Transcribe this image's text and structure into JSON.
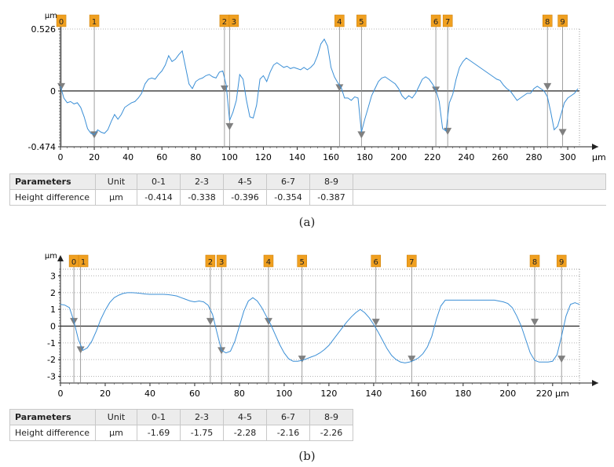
{
  "chart_data": [
    {
      "type": "line",
      "ylabel": "μm",
      "xlabel": "μm",
      "x_ticks": [
        0,
        20,
        40,
        60,
        80,
        100,
        120,
        140,
        160,
        180,
        200,
        220,
        240,
        260,
        280,
        300
      ],
      "y_ticks": [
        "0.526",
        "0",
        "-0.474"
      ],
      "y_tick_values": [
        0.526,
        0,
        -0.474
      ],
      "xlim": [
        0,
        306
      ],
      "ylim": [
        -0.474,
        0.526
      ],
      "markers": [
        {
          "label": "0",
          "x": 0.5,
          "y": 0.04
        },
        {
          "label": "1",
          "x": 20,
          "y": -0.37
        },
        {
          "label": "2",
          "x": 97,
          "y": 0.02
        },
        {
          "label": "3",
          "x": 100,
          "y": -0.3
        },
        {
          "label": "4",
          "x": 165,
          "y": 0.03
        },
        {
          "label": "5",
          "x": 178,
          "y": -0.37
        },
        {
          "label": "6",
          "x": 222,
          "y": 0.01
        },
        {
          "label": "7",
          "x": 229,
          "y": -0.34
        },
        {
          "label": "8",
          "x": 288,
          "y": 0.04
        },
        {
          "label": "9",
          "x": 297,
          "y": -0.35
        }
      ],
      "series": [
        {
          "x": [
            0,
            2,
            4,
            6,
            8,
            10,
            12,
            14,
            16,
            18,
            20,
            22,
            24,
            26,
            28,
            30,
            32,
            34,
            36,
            38,
            40,
            42,
            44,
            46,
            48,
            50,
            52,
            54,
            56,
            58,
            60,
            62,
            64,
            66,
            68,
            70,
            72,
            74,
            76,
            78,
            80,
            82,
            84,
            86,
            88,
            90,
            92,
            94,
            96,
            98,
            100,
            102,
            104,
            106,
            108,
            110,
            112,
            114,
            116,
            118,
            120,
            122,
            124,
            126,
            128,
            130,
            132,
            134,
            136,
            138,
            140,
            142,
            144,
            146,
            148,
            150,
            152,
            154,
            156,
            158,
            160,
            162,
            164,
            166,
            168,
            170,
            172,
            174,
            176,
            178,
            180,
            182,
            184,
            186,
            188,
            190,
            192,
            194,
            196,
            198,
            200,
            202,
            204,
            206,
            208,
            210,
            212,
            214,
            216,
            218,
            220,
            222,
            224,
            226,
            228,
            230,
            232,
            234,
            236,
            238,
            240,
            242,
            244,
            246,
            248,
            250,
            252,
            254,
            256,
            258,
            260,
            262,
            264,
            266,
            268,
            270,
            272,
            274,
            276,
            278,
            280,
            282,
            284,
            286,
            288,
            290,
            292,
            294,
            296,
            298,
            300,
            302,
            304,
            306
          ],
          "y": [
            0.04,
            -0.06,
            -0.1,
            -0.09,
            -0.11,
            -0.1,
            -0.14,
            -0.22,
            -0.32,
            -0.36,
            -0.37,
            -0.33,
            -0.35,
            -0.36,
            -0.33,
            -0.26,
            -0.2,
            -0.24,
            -0.2,
            -0.14,
            -0.12,
            -0.1,
            -0.09,
            -0.06,
            -0.02,
            0.06,
            0.1,
            0.11,
            0.1,
            0.14,
            0.17,
            0.22,
            0.3,
            0.25,
            0.27,
            0.31,
            0.34,
            0.2,
            0.06,
            0.02,
            0.08,
            0.1,
            0.11,
            0.13,
            0.14,
            0.12,
            0.11,
            0.16,
            0.17,
            0.05,
            -0.25,
            -0.18,
            -0.08,
            0.14,
            0.1,
            -0.08,
            -0.22,
            -0.23,
            -0.12,
            0.1,
            0.13,
            0.08,
            0.16,
            0.22,
            0.24,
            0.22,
            0.2,
            0.21,
            0.19,
            0.2,
            0.19,
            0.18,
            0.2,
            0.18,
            0.2,
            0.23,
            0.3,
            0.4,
            0.44,
            0.38,
            0.2,
            0.12,
            0.07,
            0.03,
            -0.06,
            -0.06,
            -0.08,
            -0.05,
            -0.06,
            -0.35,
            -0.24,
            -0.14,
            -0.04,
            0.02,
            0.08,
            0.11,
            0.12,
            0.1,
            0.08,
            0.06,
            0.02,
            -0.04,
            -0.07,
            -0.04,
            -0.06,
            -0.02,
            0.04,
            0.1,
            0.12,
            0.1,
            0.06,
            0.01,
            -0.09,
            -0.32,
            -0.34,
            -0.1,
            -0.03,
            0.1,
            0.2,
            0.25,
            0.28,
            0.26,
            0.24,
            0.22,
            0.2,
            0.18,
            0.16,
            0.14,
            0.12,
            0.1,
            0.09,
            0.05,
            0.02,
            0,
            -0.04,
            -0.08,
            -0.06,
            -0.04,
            -0.02,
            -0.02,
            0.02,
            0.04,
            0.02,
            0,
            -0.05,
            -0.18,
            -0.33,
            -0.3,
            -0.2,
            -0.1,
            -0.06,
            -0.04,
            -0.02,
            0.02
          ]
        }
      ],
      "table": {
        "header": [
          "Parameters",
          "Unit",
          "0-1",
          "2-3",
          "4-5",
          "6-7",
          "8-9"
        ],
        "row": [
          "Height difference",
          "μm",
          "-0.414",
          "-0.338",
          "-0.396",
          "-0.354",
          "-0.387"
        ]
      },
      "caption": "(a)"
    },
    {
      "type": "line",
      "ylabel": "μm",
      "xlabel": "μm",
      "x_ticks": [
        0,
        20,
        40,
        60,
        80,
        100,
        120,
        140,
        160,
        180,
        200,
        220
      ],
      "x_tick_labels": [
        "0",
        "20",
        "40",
        "60",
        "80",
        "100",
        "120",
        "140",
        "160",
        "180",
        "200",
        "220 μm"
      ],
      "y_ticks": [
        "3",
        "2",
        "1",
        "0",
        "-1",
        "-2",
        "-3"
      ],
      "y_tick_values": [
        3,
        2,
        1,
        0,
        -1,
        -2,
        -3
      ],
      "xlim": [
        0,
        232
      ],
      "ylim": [
        -3.4,
        3.4
      ],
      "markers": [
        {
          "label": "0",
          "x": 6,
          "y": 0.3
        },
        {
          "label": "1",
          "x": 9,
          "y": -1.4
        },
        {
          "label": "2",
          "x": 67,
          "y": 0.3
        },
        {
          "label": "3",
          "x": 72,
          "y": -1.45
        },
        {
          "label": "4",
          "x": 93,
          "y": 0.3
        },
        {
          "label": "5",
          "x": 108,
          "y": -1.95
        },
        {
          "label": "6",
          "x": 141,
          "y": 0.25
        },
        {
          "label": "7",
          "x": 157,
          "y": -1.95
        },
        {
          "label": "8",
          "x": 212,
          "y": 0.25
        },
        {
          "label": "9",
          "x": 224,
          "y": -1.95
        }
      ],
      "series": [
        {
          "x": [
            0,
            2,
            4,
            6,
            8,
            10,
            12,
            14,
            16,
            18,
            20,
            22,
            24,
            26,
            28,
            30,
            32,
            34,
            36,
            38,
            40,
            42,
            44,
            46,
            48,
            50,
            52,
            54,
            56,
            58,
            60,
            62,
            64,
            66,
            68,
            70,
            72,
            74,
            76,
            78,
            80,
            82,
            84,
            86,
            88,
            90,
            92,
            94,
            96,
            98,
            100,
            102,
            104,
            106,
            108,
            110,
            112,
            114,
            116,
            118,
            120,
            122,
            124,
            126,
            128,
            130,
            132,
            134,
            136,
            138,
            140,
            142,
            144,
            146,
            148,
            150,
            152,
            154,
            156,
            158,
            160,
            162,
            164,
            166,
            168,
            170,
            172,
            174,
            176,
            178,
            180,
            182,
            184,
            186,
            188,
            190,
            192,
            194,
            196,
            198,
            200,
            202,
            204,
            206,
            208,
            210,
            212,
            214,
            216,
            218,
            220,
            222,
            224,
            226,
            228,
            230,
            232
          ],
          "y": [
            1.3,
            1.25,
            1.1,
            0.3,
            -0.8,
            -1.45,
            -1.3,
            -0.9,
            -0.3,
            0.4,
            0.95,
            1.4,
            1.7,
            1.85,
            1.95,
            2,
            2,
            1.98,
            1.95,
            1.92,
            1.9,
            1.9,
            1.9,
            1.9,
            1.88,
            1.85,
            1.8,
            1.7,
            1.6,
            1.5,
            1.45,
            1.5,
            1.45,
            1.25,
            0.7,
            -0.4,
            -1.45,
            -1.6,
            -1.5,
            -0.9,
            0,
            0.9,
            1.5,
            1.7,
            1.5,
            1.1,
            0.6,
            0.1,
            -0.5,
            -1.1,
            -1.6,
            -1.95,
            -2.1,
            -2.1,
            -2.05,
            -1.95,
            -1.85,
            -1.75,
            -1.6,
            -1.4,
            -1.15,
            -0.8,
            -0.45,
            -0.1,
            0.25,
            0.55,
            0.8,
            1,
            0.8,
            0.5,
            0.1,
            -0.35,
            -0.85,
            -1.35,
            -1.75,
            -2,
            -2.15,
            -2.2,
            -2.15,
            -2.05,
            -1.9,
            -1.65,
            -1.25,
            -0.6,
            0.4,
            1.2,
            1.55,
            1.55,
            1.55,
            1.55,
            1.55,
            1.55,
            1.55,
            1.55,
            1.55,
            1.55,
            1.55,
            1.55,
            1.5,
            1.45,
            1.35,
            1.1,
            0.6,
            0,
            -0.8,
            -1.6,
            -2.05,
            -2.15,
            -2.15,
            -2.15,
            -2.1,
            -1.7,
            -0.6,
            0.6,
            1.3,
            1.4,
            1.3
          ]
        }
      ],
      "table": {
        "header": [
          "Parameters",
          "Unit",
          "0-1",
          "2-3",
          "4-5",
          "6-7",
          "8-9"
        ],
        "row": [
          "Height difference",
          "μm",
          "-1.69",
          "-1.75",
          "-2.28",
          "-2.16",
          "-2.26"
        ]
      },
      "caption": "(b)"
    }
  ],
  "style": {
    "line_color": "#3b8fd6",
    "marker_color": "#f0a020",
    "triangle_color": "#808080",
    "zero_line_color": "#222222",
    "grid_color": "#b5b5b5"
  }
}
